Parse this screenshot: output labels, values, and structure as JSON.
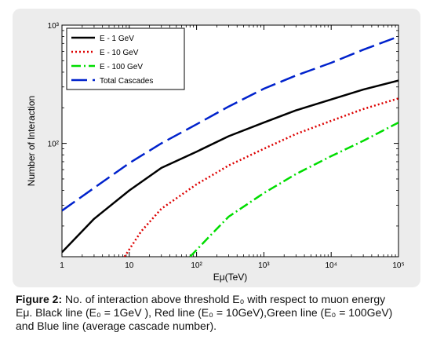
{
  "caption": {
    "label": "Figure 2:",
    "line1": "No. of interaction above threshold E₀ with respect to muon energy",
    "line2": "Eμ. Black line (E₀ = 1GeV ), Red line (E₀ = 10GeV),Green line (E₀ = 100GeV)",
    "line3": "and Blue line (average cascade number)."
  },
  "chart_data": {
    "type": "line",
    "xlabel": "Eμ(TeV)",
    "ylabel": "Number of Interaction",
    "x_scale": "log",
    "y_scale": "log",
    "xlim": [
      1,
      100000
    ],
    "ylim": [
      11,
      1000
    ],
    "x_ticks": [
      {
        "value": 1,
        "label": "1"
      },
      {
        "value": 10,
        "label": "10"
      },
      {
        "value": 100,
        "label": "10²"
      },
      {
        "value": 1000,
        "label": "10³"
      },
      {
        "value": 10000,
        "label": "10⁴"
      },
      {
        "value": 100000,
        "label": "10⁵"
      }
    ],
    "y_ticks": [
      {
        "value": 100,
        "label": "10²"
      },
      {
        "value": 1000,
        "label": "10³"
      }
    ],
    "grid": false,
    "legend": "top-left",
    "series": [
      {
        "name": "E - 1 GeV",
        "color": "#000000",
        "style": "solid",
        "x": [
          1,
          3,
          10,
          30,
          100,
          300,
          1000,
          3000,
          10000,
          30000,
          100000
        ],
        "y": [
          12,
          23,
          40,
          62,
          85,
          115,
          150,
          190,
          235,
          285,
          340
        ]
      },
      {
        "name": "E - 10 GeV",
        "color": "#dd0000",
        "style": "dotted",
        "x": [
          8.5,
          15,
          30,
          100,
          300,
          1000,
          3000,
          10000,
          30000,
          100000
        ],
        "y": [
          11,
          18,
          28,
          45,
          65,
          90,
          120,
          155,
          195,
          240
        ]
      },
      {
        "name": "E - 100 GeV",
        "color": "#00dd00",
        "style": "dashdot",
        "x": [
          80,
          150,
          300,
          1000,
          3000,
          10000,
          30000,
          100000
        ],
        "y": [
          11,
          16,
          24,
          38,
          55,
          78,
          105,
          150
        ]
      },
      {
        "name": "Total Cascades",
        "color": "#0022cc",
        "style": "dashed",
        "x": [
          1,
          3,
          10,
          30,
          100,
          300,
          1000,
          3000,
          10000,
          30000,
          100000
        ],
        "y": [
          27,
          42,
          68,
          100,
          145,
          205,
          290,
          375,
          480,
          620,
          800
        ]
      }
    ]
  }
}
